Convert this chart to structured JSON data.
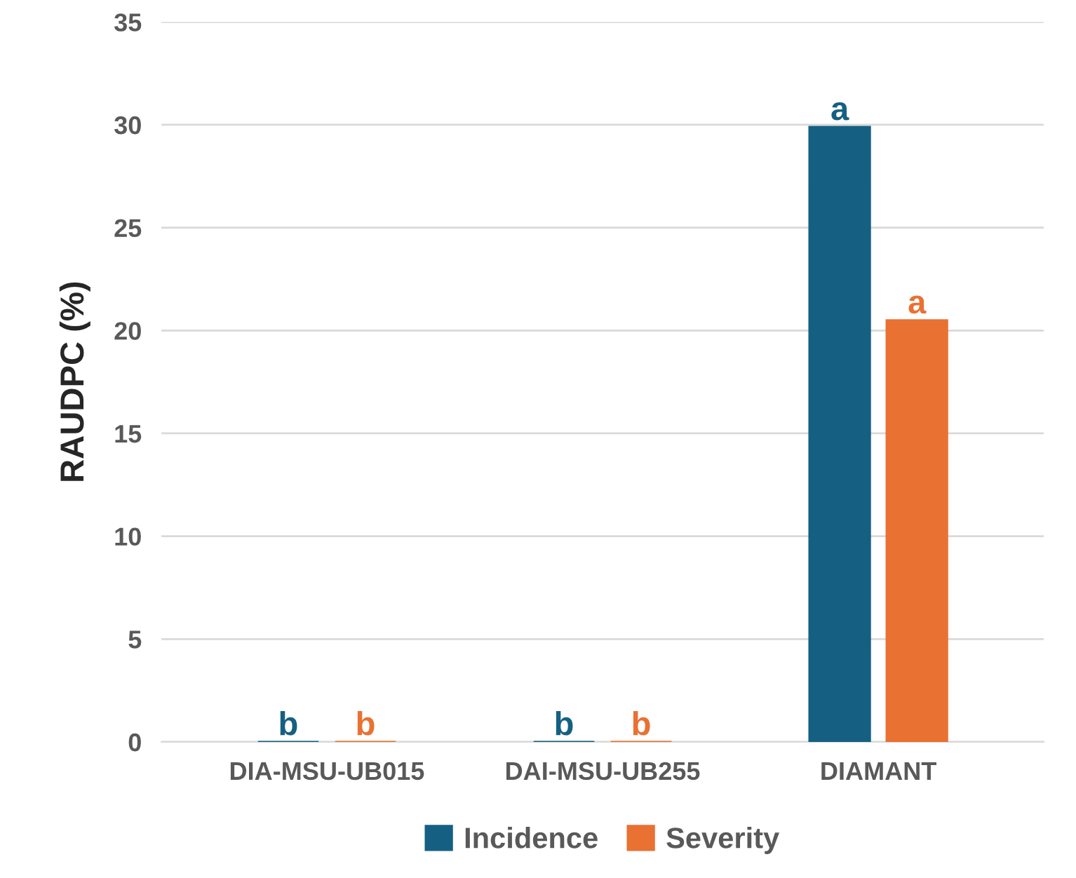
{
  "chart_data": {
    "type": "bar",
    "ylabel": "RAUDPC (%)",
    "categories": [
      "DIA-MSU-UB015",
      "DAI-MSU-UB255",
      "DIAMANT"
    ],
    "series": [
      {
        "name": "Incidence",
        "color": "#156082",
        "values": [
          0,
          0,
          29.9
        ],
        "value_labels": [
          "b",
          "b",
          "a"
        ]
      },
      {
        "name": "Severity",
        "color": "#e97132",
        "values": [
          0,
          0,
          20.5
        ],
        "value_labels": [
          "b",
          "b",
          "a"
        ]
      }
    ],
    "ylim": [
      0,
      35
    ],
    "yticks": [
      0,
      5,
      10,
      15,
      20,
      25,
      30,
      35
    ],
    "grid": "y",
    "legend": "bottom"
  }
}
